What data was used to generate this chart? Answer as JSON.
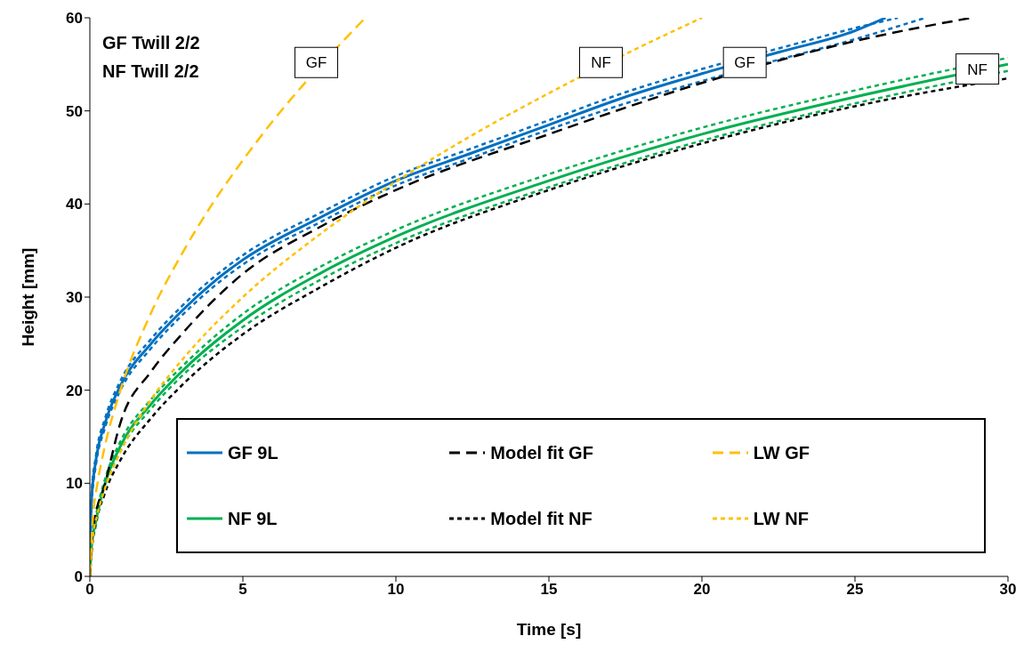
{
  "chart_data": {
    "type": "line",
    "xlabel": "Time [s]",
    "ylabel": "Height [mm]",
    "xlim": [
      0,
      30
    ],
    "xticks": [
      0,
      5,
      10,
      15,
      20,
      25,
      30
    ],
    "ylim": [
      0,
      60
    ],
    "yticks": [
      0,
      10,
      20,
      30,
      40,
      50,
      60
    ],
    "grid": false,
    "legend": "bottom",
    "marker": "none",
    "annotations": [
      "GF Twill 2/2",
      "NF Twill 2/2",
      {
        "text": "GF",
        "x": 7.4,
        "y": 55.2
      },
      {
        "text": "NF",
        "x": 16.7,
        "y": 55.2
      },
      {
        "text": "GF",
        "x": 21.4,
        "y": 55.2
      },
      {
        "text": "NF",
        "x": 29,
        "y": 54.5
      }
    ],
    "series": [
      {
        "name": "GF 9L",
        "color": "#0070c0",
        "line_style": "solid",
        "x": [
          0,
          0.05,
          0.2,
          0.5,
          1,
          2,
          3,
          4,
          5,
          7.5,
          10,
          12.5,
          15,
          17.5,
          20,
          22.5,
          25,
          26
        ],
        "values": [
          0,
          8,
          12.5,
          16.5,
          20.5,
          25,
          28.5,
          31.5,
          34,
          38.5,
          42.5,
          45.5,
          48.5,
          51.5,
          54,
          56.3,
          58.6,
          60
        ]
      },
      {
        "color": "#0070c0",
        "line_style": "dotted",
        "x": [
          0,
          0.05,
          0.2,
          0.5,
          1,
          2,
          3,
          4,
          5,
          7.5,
          10,
          12.5,
          15,
          17.5,
          20,
          22.5,
          25,
          26.4
        ],
        "values": [
          0,
          8.5,
          13,
          17,
          21,
          25.5,
          29,
          32,
          34.5,
          39,
          43,
          46,
          49,
          52,
          54.5,
          56.7,
          58.9,
          60
        ]
      },
      {
        "color": "#0070c0",
        "line_style": "dotted",
        "x": [
          0,
          0.05,
          0.2,
          0.5,
          1,
          2,
          3,
          4,
          5,
          7.5,
          10,
          12.5,
          15,
          17.5,
          20,
          22.5,
          25,
          27.3
        ],
        "values": [
          0,
          7.5,
          12,
          16,
          20,
          24.5,
          28,
          31,
          33.5,
          38,
          42,
          45,
          48,
          50.8,
          53.2,
          55.5,
          57.7,
          60
        ]
      },
      {
        "name": "NF 9L",
        "color": "#00b050",
        "line_style": "solid",
        "x": [
          0,
          0.05,
          0.2,
          0.5,
          1,
          2,
          3,
          5,
          7.5,
          10,
          15,
          20,
          25,
          30
        ],
        "values": [
          0,
          3,
          6,
          10,
          14,
          18.5,
          22,
          27.5,
          32.5,
          36.5,
          42.5,
          47.5,
          51.5,
          55
        ]
      },
      {
        "color": "#00b050",
        "line_style": "dotted",
        "x": [
          0,
          0.05,
          0.2,
          0.5,
          1,
          2,
          3,
          5,
          7.5,
          10,
          15,
          20,
          25,
          30
        ],
        "values": [
          0,
          3.3,
          6.5,
          10.5,
          14.5,
          19,
          22.5,
          28.2,
          33.2,
          37.2,
          43.2,
          48.2,
          52.2,
          55.7
        ]
      },
      {
        "color": "#00b050",
        "line_style": "dotted",
        "x": [
          0,
          0.05,
          0.2,
          0.5,
          1,
          2,
          3,
          5,
          7.5,
          10,
          15,
          20,
          25,
          30
        ],
        "values": [
          0,
          2.7,
          5.5,
          9.5,
          13.5,
          18,
          21.5,
          26.8,
          31.8,
          35.8,
          41.8,
          46.8,
          50.8,
          54.3
        ]
      },
      {
        "name": "Model fit GF",
        "color": "#000000",
        "line_style": "dashed",
        "x": [
          0,
          0.1,
          0.5,
          1,
          2,
          3,
          5,
          7.5,
          10,
          15,
          20,
          25,
          28.8
        ],
        "values": [
          0,
          5,
          10,
          16.5,
          22,
          26,
          32.5,
          37.5,
          41.5,
          47.5,
          53,
          57.5,
          60
        ]
      },
      {
        "name": "Model fit NF",
        "color": "#000000",
        "line_style": "dotted",
        "x": [
          0,
          0.1,
          0.5,
          1,
          2,
          3,
          5,
          7.5,
          10,
          15,
          20,
          25,
          30
        ],
        "values": [
          0,
          4,
          9,
          12.5,
          17,
          20.5,
          26,
          31,
          35.3,
          41.5,
          46.5,
          50.5,
          53.5
        ]
      },
      {
        "name": "LW GF",
        "color": "#ffc000",
        "line_style": "dashed",
        "x": [
          0,
          0.1,
          0.25,
          0.5,
          1,
          2,
          3,
          4,
          5,
          6,
          7,
          9
        ],
        "values": [
          0,
          6.3,
          10,
          14.1,
          20,
          28.3,
          34.6,
          40,
          44.7,
          49,
          52.9,
          60
        ]
      },
      {
        "name": "LW NF",
        "color": "#ffc000",
        "line_style": "dotted",
        "x": [
          0,
          0.1,
          0.25,
          0.5,
          1,
          2,
          3,
          5,
          7.5,
          10,
          12.5,
          15,
          17.5,
          20
        ],
        "values": [
          0,
          4.2,
          6.7,
          9.5,
          13.4,
          19,
          23.2,
          30,
          36.7,
          42.4,
          47.4,
          51.9,
          56.1,
          60
        ]
      }
    ]
  }
}
